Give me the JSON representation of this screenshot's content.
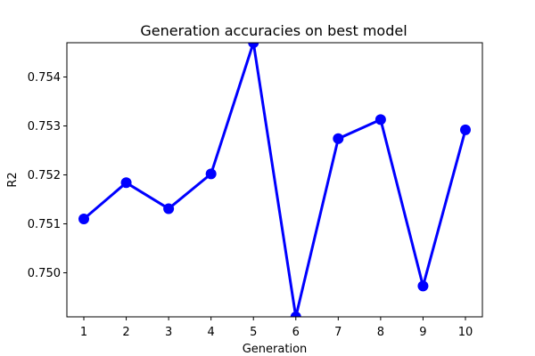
{
  "chart_data": {
    "type": "line",
    "title": "Generation accuracies on best model",
    "xlabel": "Generation",
    "ylabel": "R2",
    "x": [
      1,
      2,
      3,
      4,
      5,
      6,
      7,
      8,
      9,
      10
    ],
    "y": [
      0.7511,
      0.75184,
      0.75131,
      0.75202,
      0.7547,
      0.7491,
      0.75274,
      0.75313,
      0.74973,
      0.75292
    ],
    "xticks": [
      "1",
      "2",
      "3",
      "4",
      "5",
      "6",
      "7",
      "8",
      "9",
      "10"
    ],
    "yticks": [
      0.75,
      0.751,
      0.752,
      0.753,
      0.754
    ],
    "ytick_labels": [
      "0.750",
      "0.751",
      "0.752",
      "0.753",
      "0.754"
    ],
    "xlim": [
      0.6,
      10.4
    ],
    "ylim": [
      0.7491,
      0.7547
    ],
    "grid": false,
    "marker": "circle",
    "color": "#0000ff"
  }
}
